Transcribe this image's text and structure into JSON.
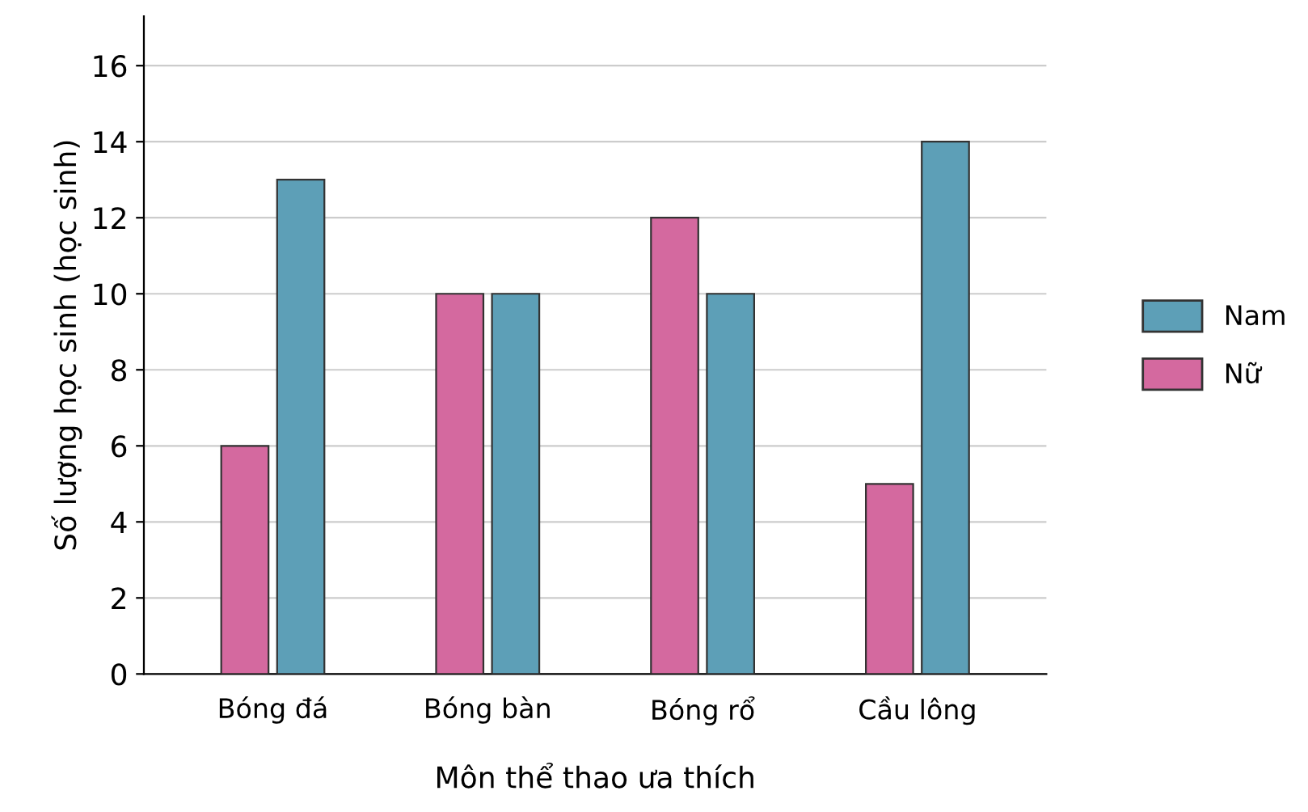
{
  "chart_data": {
    "type": "bar",
    "xlabel": "Môn thể thao ưa thích",
    "ylabel": "Số lượng học sinh (học sinh)",
    "categories": [
      "Bóng đá",
      "Bóng bàn",
      "Bóng rổ",
      "Cầu lông"
    ],
    "series": [
      {
        "name": "Nữ",
        "color": "#d4699f",
        "values": [
          6,
          10,
          12,
          5
        ]
      },
      {
        "name": "Nam",
        "color": "#5d9fb7",
        "values": [
          13,
          10,
          10,
          14
        ]
      }
    ],
    "ylim": [
      0,
      17.3
    ],
    "yticks": [
      0,
      2,
      4,
      6,
      8,
      10,
      12,
      14,
      16
    ],
    "grid": "y",
    "legend": "right"
  }
}
